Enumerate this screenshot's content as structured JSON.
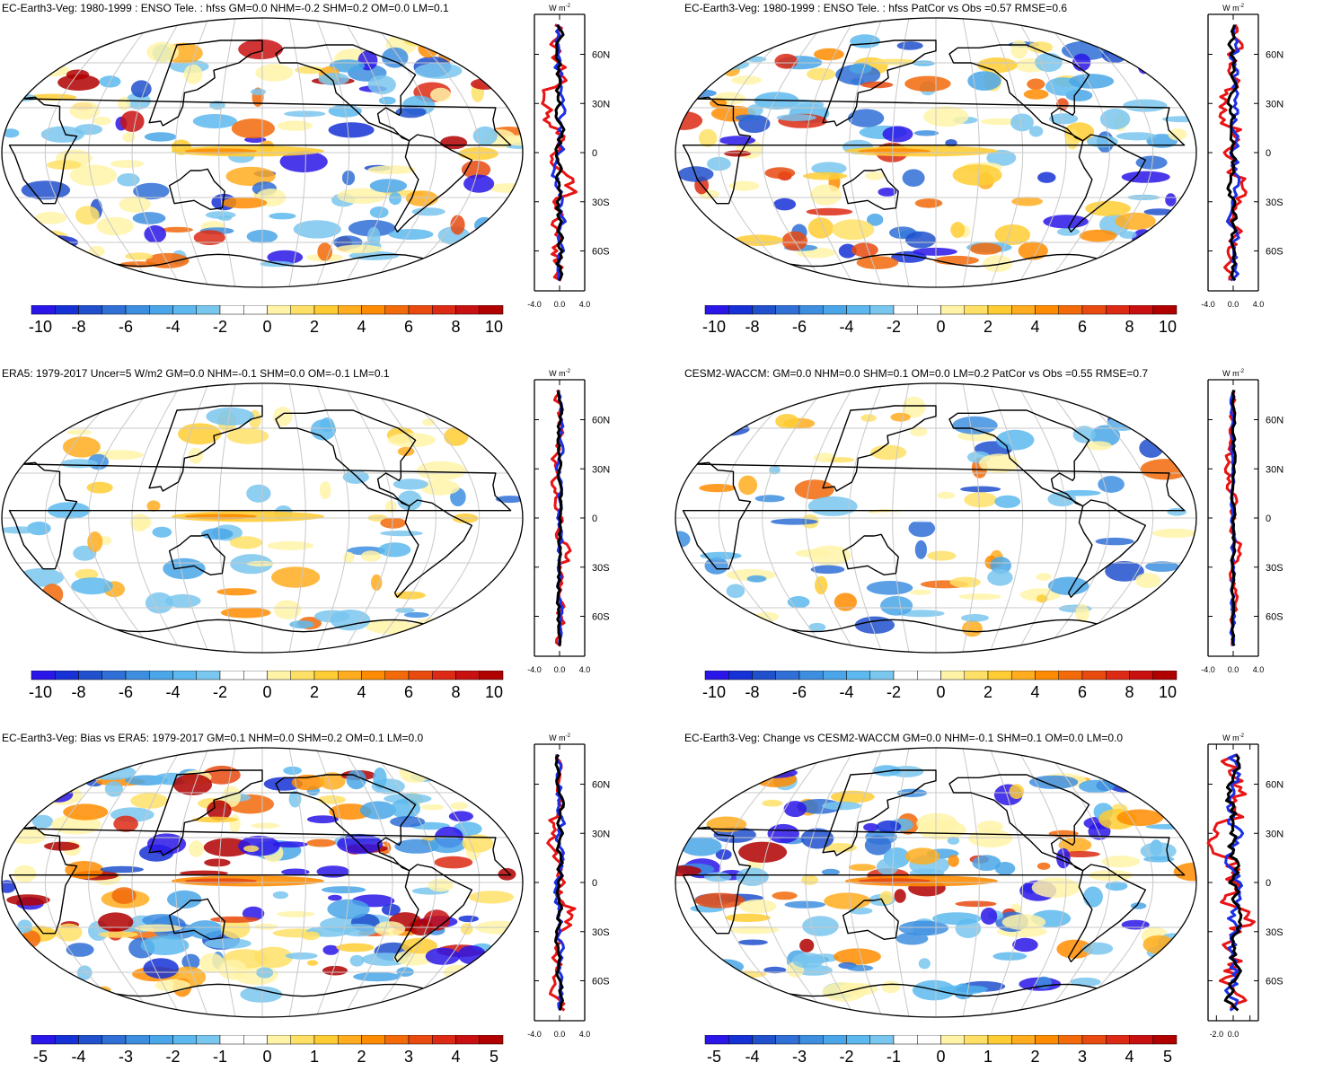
{
  "colors": {
    "palette_anom": [
      "#2a16e8",
      "#1631d6",
      "#2050cc",
      "#2f6fd6",
      "#3e8ee0",
      "#4aa6e8",
      "#5cb8ee",
      "#79c6ee",
      "#ffffff",
      "#ffffff",
      "#fff3a8",
      "#ffe066",
      "#ffcc33",
      "#ffad1f",
      "#ff8c00",
      "#f26a0a",
      "#e84a10",
      "#dc2a14",
      "#c81010",
      "#b00000"
    ],
    "coast": "#000000",
    "grid": "#c8c8c8",
    "line_north": "#1a2fe6",
    "line_south": "#e81414",
    "line_zonal": "#000000"
  },
  "panels": [
    {
      "id": "model-tele",
      "title": "EC-Earth3-Veg: 1980-1999 : ENSO Tele. : hfss GM=0.0 NHM=-0.2 SHM=0.2 OM=0.0 LM=0.1",
      "colorbar_ticks": [
        "-10",
        "-8",
        "-6",
        "-4",
        "-2",
        "0",
        "2",
        "4",
        "6",
        "8",
        "10"
      ],
      "profile": {
        "unit": "W m",
        "unit_sup": "-2",
        "x_ticks": [
          "-4.0",
          "0.0",
          "4.0"
        ],
        "x_range": [
          -4,
          4
        ],
        "lat_ticks": [
          "60N",
          "30N",
          "0",
          "30S",
          "60S"
        ]
      }
    },
    {
      "id": "model-patcor",
      "title": "EC-Earth3-Veg: 1980-1999 : ENSO Tele. : hfss PatCor vs Obs =0.57 RMSE=0.6",
      "colorbar_ticks": [
        "-10",
        "-8",
        "-6",
        "-4",
        "-2",
        "0",
        "2",
        "4",
        "6",
        "8",
        "10"
      ],
      "profile": {
        "unit": "W m",
        "unit_sup": "-2",
        "x_ticks": [
          "-4.0",
          "0.0",
          "4.0"
        ],
        "x_range": [
          -4,
          4
        ],
        "lat_ticks": [
          "60N",
          "30N",
          "0",
          "30S",
          "60S"
        ]
      }
    },
    {
      "id": "era5",
      "title": "ERA5: 1979-2017 Uncer=5 W/m2 GM=0.0 NHM=-0.1 SHM=0.0 OM=-0.1 LM=0.1",
      "colorbar_ticks": [
        "-10",
        "-8",
        "-6",
        "-4",
        "-2",
        "0",
        "2",
        "4",
        "6",
        "8",
        "10"
      ],
      "profile": {
        "unit": "W m",
        "unit_sup": "-2",
        "x_ticks": [
          "-4.0",
          "0.0",
          "4.0"
        ],
        "x_range": [
          -4,
          4
        ],
        "lat_ticks": [
          "60N",
          "30N",
          "0",
          "30S",
          "60S"
        ]
      }
    },
    {
      "id": "cesm2",
      "title": "CESM2-WACCM: GM=0.0 NHM=0.0 SHM=0.1 OM=0.0 LM=0.2 PatCor vs Obs =0.55 RMSE=0.7",
      "colorbar_ticks": [
        "-10",
        "-8",
        "-6",
        "-4",
        "-2",
        "0",
        "2",
        "4",
        "6",
        "8",
        "10"
      ],
      "profile": {
        "unit": "W m",
        "unit_sup": "-2",
        "x_ticks": [
          "-4.0",
          "0.0",
          "4.0"
        ],
        "x_range": [
          -4,
          4
        ],
        "lat_ticks": [
          "60N",
          "30N",
          "0",
          "30S",
          "60S"
        ]
      }
    },
    {
      "id": "bias",
      "title": "EC-Earth3-Veg: Bias vs ERA5: 1979-2017 GM=0.1 NHM=0.0 SHM=0.2 OM=0.1 LM=0.0",
      "colorbar_ticks": [
        "-5",
        "-4",
        "-3",
        "-2",
        "-1",
        "0",
        "1",
        "2",
        "3",
        "4",
        "5"
      ],
      "profile": {
        "unit": "W m",
        "unit_sup": "-2",
        "x_ticks": [
          "-4.0",
          "0.0",
          "4.0"
        ],
        "x_range": [
          -4,
          4
        ],
        "lat_ticks": [
          "60N",
          "30N",
          "0",
          "30S",
          "60S"
        ]
      }
    },
    {
      "id": "change",
      "title": "EC-Earth3-Veg: Change vs CESM2-WACCM GM=0.0 NHM=-0.1 SHM=0.1 OM=0.0 LM=0.0",
      "colorbar_ticks": [
        "-5",
        "-4",
        "-3",
        "-2",
        "-1",
        "0",
        "1",
        "2",
        "3",
        "4",
        "5"
      ],
      "profile": {
        "unit": "W m",
        "unit_sup": "-2",
        "x_ticks": [
          "-2.0",
          "0.0",
          ""
        ],
        "x_range": [
          -3,
          3
        ],
        "lat_ticks": [
          "60N",
          "30N",
          "0",
          "30S",
          "60S"
        ]
      }
    }
  ]
}
